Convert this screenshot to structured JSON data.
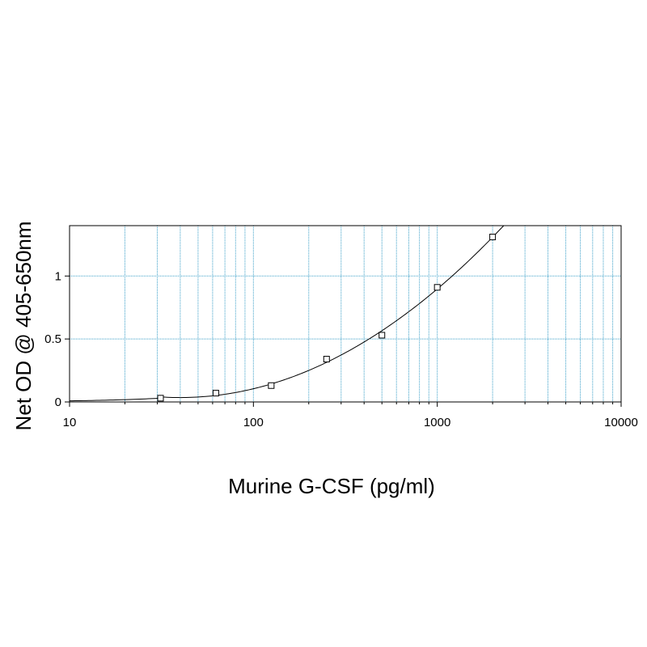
{
  "chart_data": {
    "type": "scatter",
    "xlabel": "Murine G-CSF (pg/ml)",
    "ylabel": "Net OD @ 405-650nm",
    "x_scale": "log",
    "xlim": [
      10,
      10000
    ],
    "ylim": [
      0,
      1.4
    ],
    "x_ticks": [
      "10",
      "100",
      "1000",
      "10000"
    ],
    "y_ticks": [
      "0",
      "0.5",
      "1"
    ],
    "grid": true,
    "grid_color": "#3a9fc8",
    "series": [
      {
        "marker": "open-square",
        "x": [
          31.25,
          62.5,
          125,
          250,
          500,
          1000,
          2000
        ],
        "y": [
          0.03,
          0.07,
          0.13,
          0.34,
          0.53,
          0.91,
          1.31
        ]
      }
    ],
    "fit_curve": {
      "type": "line",
      "x_range": [
        10,
        2300
      ]
    }
  }
}
